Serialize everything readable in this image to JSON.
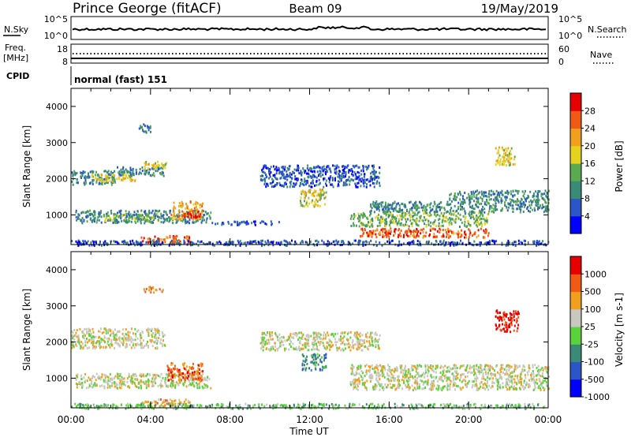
{
  "header": {
    "station": "Prince George (fitACF)",
    "beam": "Beam 09",
    "date": "19/May/2019"
  },
  "params": {
    "nsky_label": "N.Sky",
    "nsky_ticks": [
      "10^5",
      "10^0"
    ],
    "nsearch_label": "N.Search",
    "freq_label_1": "Freq.",
    "freq_label_2": "[MHz]",
    "freq_ticks": [
      "18",
      "8"
    ],
    "nave_label": "Nave",
    "nave_ticks": [
      "60",
      "0"
    ],
    "cpid_label": "CPID",
    "cpid_value": "normal (fast) 151"
  },
  "chart_data": [
    {
      "type": "heatmap",
      "ylabel": "Slant Range [km]",
      "xlabel": "Time UT",
      "x_ticks": [
        "00:00",
        "04:00",
        "08:00",
        "12:00",
        "16:00",
        "20:00",
        "00:00"
      ],
      "y_ticks": [
        "1000",
        "2000",
        "3000",
        "4000"
      ],
      "xlim_hours": [
        0,
        24
      ],
      "ylim_km": [
        180,
        4500
      ],
      "colorbar": {
        "label": "Power [dB]",
        "ticks": [
          "4",
          "8",
          "12",
          "16",
          "20",
          "24",
          "28"
        ],
        "colors": [
          "#0000ff",
          "#2a56c8",
          "#3a8a78",
          "#5aaa50",
          "#e6d21e",
          "#f0a01e",
          "#f05a14",
          "#e60000"
        ]
      },
      "echo_regions": [
        {
          "t0": 0.0,
          "t1": 2.2,
          "r0": 1850,
          "r1": 2250,
          "level": 2
        },
        {
          "t0": 1.0,
          "t1": 3.2,
          "r0": 1950,
          "r1": 2150,
          "level": 4
        },
        {
          "t0": 2.3,
          "t1": 4.7,
          "r0": 2100,
          "r1": 2350,
          "level": 2
        },
        {
          "t0": 3.6,
          "t1": 4.8,
          "r0": 2300,
          "r1": 2500,
          "level": 4
        },
        {
          "t0": 3.4,
          "t1": 4.0,
          "r0": 3300,
          "r1": 3550,
          "level": 2
        },
        {
          "t0": 0.2,
          "t1": 7.0,
          "r0": 800,
          "r1": 1150,
          "level": 2
        },
        {
          "t0": 1.6,
          "t1": 4.5,
          "r0": 850,
          "r1": 1050,
          "level": 3
        },
        {
          "t0": 5.0,
          "t1": 6.6,
          "r0": 900,
          "r1": 1400,
          "level": 5
        },
        {
          "t0": 5.6,
          "t1": 6.5,
          "r0": 950,
          "r1": 1150,
          "level": 7
        },
        {
          "t0": 3.5,
          "t1": 6.0,
          "r0": 250,
          "r1": 450,
          "level": 6
        },
        {
          "t0": 7.0,
          "t1": 10.5,
          "r0": 750,
          "r1": 850,
          "level": 1
        },
        {
          "t0": 11.5,
          "t1": 12.8,
          "r0": 1250,
          "r1": 1750,
          "level": 4
        },
        {
          "t0": 9.5,
          "t1": 15.5,
          "r0": 1800,
          "r1": 2400,
          "level": 1
        },
        {
          "t0": 15.0,
          "t1": 24.0,
          "r0": 1100,
          "r1": 1400,
          "level": 2
        },
        {
          "t0": 14.0,
          "t1": 21.0,
          "r0": 700,
          "r1": 1100,
          "level": 3
        },
        {
          "t0": 14.5,
          "t1": 21.0,
          "r0": 400,
          "r1": 650,
          "level": 6
        },
        {
          "t0": 21.3,
          "t1": 22.3,
          "r0": 2400,
          "r1": 2900,
          "level": 4
        },
        {
          "t0": 19.0,
          "t1": 24.0,
          "r0": 1400,
          "r1": 1700,
          "level": 2
        },
        {
          "t0": 0.0,
          "t1": 24.0,
          "r0": 180,
          "r1": 320,
          "level": 1
        }
      ]
    },
    {
      "type": "heatmap",
      "ylabel": "Slant Range [km]",
      "xlabel": "Time UT",
      "x_ticks": [
        "00:00",
        "04:00",
        "08:00",
        "12:00",
        "16:00",
        "20:00",
        "00:00"
      ],
      "y_ticks": [
        "1000",
        "2000",
        "3000",
        "4000"
      ],
      "xlim_hours": [
        0,
        24
      ],
      "ylim_km": [
        180,
        4500
      ],
      "colorbar": {
        "label": "Velocity [m s-1]",
        "ticks": [
          "1000",
          "500",
          "100",
          "25",
          "-25",
          "-100",
          "-500",
          "-1000"
        ],
        "colors": [
          "#0000ff",
          "#2a56c8",
          "#3a8a78",
          "#5ad23c",
          "#c8c8c0",
          "#f0a01e",
          "#f05a14",
          "#e60000"
        ]
      },
      "echo_regions": [
        {
          "t0": 0.0,
          "t1": 4.7,
          "r0": 1850,
          "r1": 2400,
          "level": 4
        },
        {
          "t0": 3.6,
          "t1": 4.6,
          "r0": 3400,
          "r1": 3550,
          "level": 5
        },
        {
          "t0": 0.2,
          "t1": 7.0,
          "r0": 750,
          "r1": 1150,
          "level": 4
        },
        {
          "t0": 4.8,
          "t1": 6.6,
          "r0": 950,
          "r1": 1450,
          "level": 6
        },
        {
          "t0": 3.5,
          "t1": 6.0,
          "r0": 250,
          "r1": 450,
          "level": 5
        },
        {
          "t0": 11.6,
          "t1": 12.8,
          "r0": 1250,
          "r1": 1700,
          "level": 2
        },
        {
          "t0": 9.5,
          "t1": 15.5,
          "r0": 1800,
          "r1": 2300,
          "level": 4
        },
        {
          "t0": 14.0,
          "t1": 24.0,
          "r0": 700,
          "r1": 1400,
          "level": 4
        },
        {
          "t0": 21.3,
          "t1": 22.5,
          "r0": 2300,
          "r1": 2900,
          "level": 7
        },
        {
          "t0": 0.0,
          "t1": 24.0,
          "r0": 180,
          "r1": 320,
          "level": 3
        }
      ]
    }
  ]
}
